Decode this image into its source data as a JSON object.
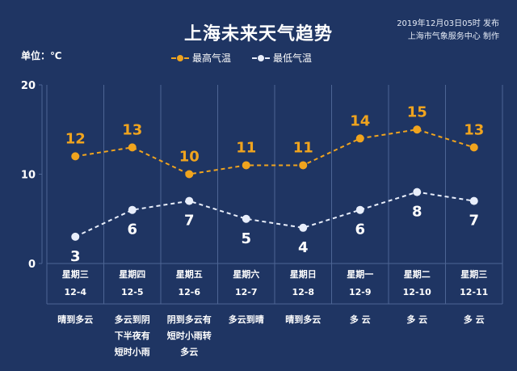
{
  "header": {
    "title": "上海未来天气趋势",
    "publish_line1": "2019年12月03日05时  发布",
    "publish_line2": "上海市气象服务中心  制作"
  },
  "unit_label": "单位：℃",
  "colors": {
    "background": "#1f3563",
    "high": "#f0a41e",
    "low": "#e8eefb",
    "grid": "#4d6594"
  },
  "chart_data": {
    "type": "line",
    "title": "上海未来天气趋势",
    "ylabel": "单位：℃",
    "ylim": [
      0,
      20
    ],
    "yticks": [
      0,
      10,
      20
    ],
    "legend_position": "top-center",
    "categories": [
      "12-4",
      "12-5",
      "12-6",
      "12-7",
      "12-8",
      "12-9",
      "12-10",
      "12-11"
    ],
    "weekdays": [
      "星期三",
      "星期四",
      "星期五",
      "星期六",
      "星期日",
      "星期一",
      "星期二",
      "星期三"
    ],
    "series": [
      {
        "name": "最高气温",
        "values": [
          12,
          13,
          10,
          11,
          11,
          14,
          15,
          13
        ]
      },
      {
        "name": "最低气温",
        "values": [
          3,
          6,
          7,
          5,
          4,
          6,
          8,
          7
        ]
      }
    ]
  },
  "weather": [
    "晴到多云",
    "多云到阴\n下半夜有\n短时小雨",
    "阴到多云有\n短时小雨转\n多云",
    "多云到晴",
    "晴到多云",
    "多 云",
    "多 云",
    "多 云"
  ]
}
